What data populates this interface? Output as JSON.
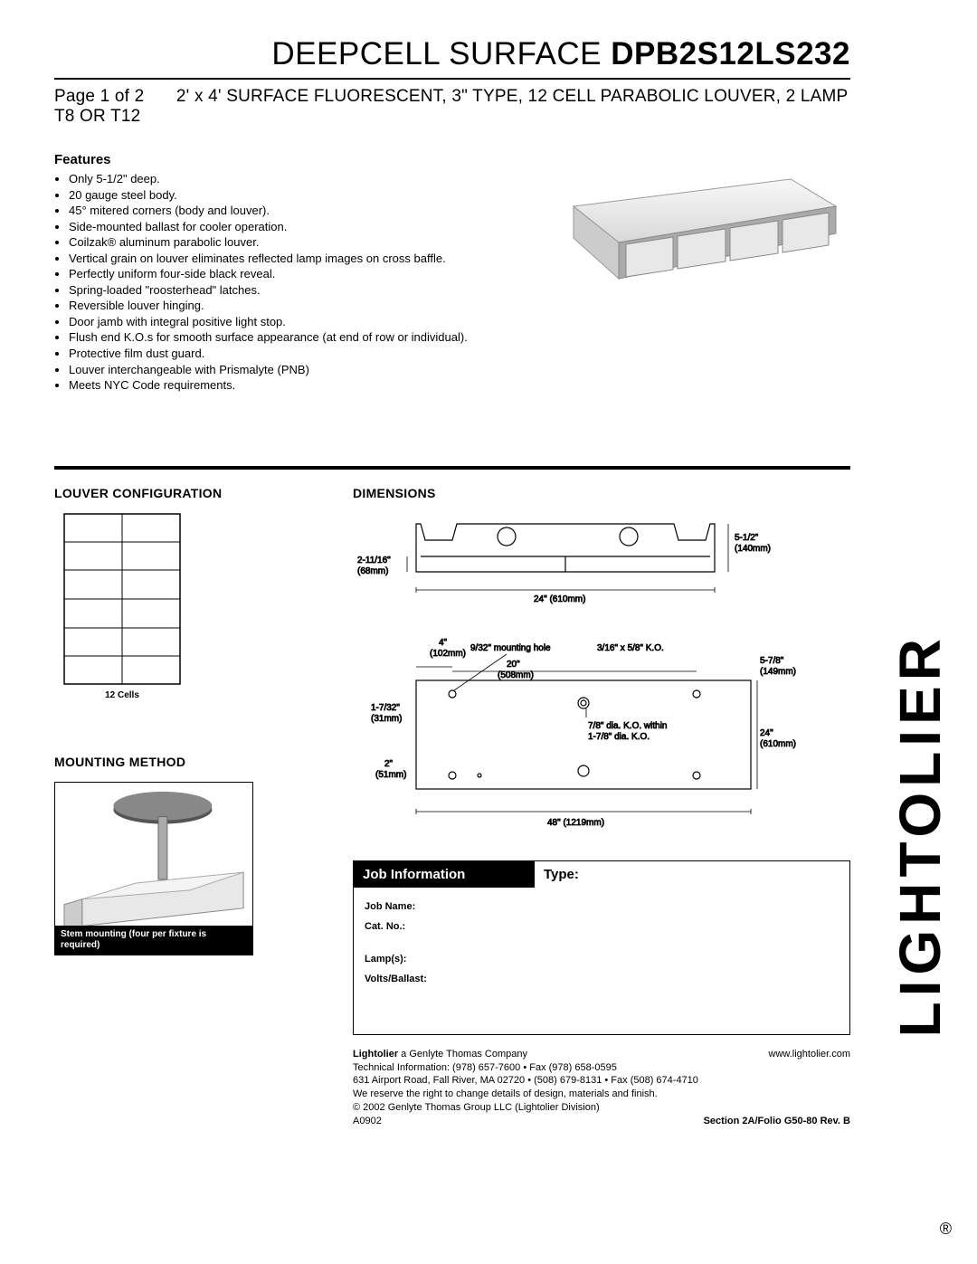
{
  "header": {
    "product_line": "DEEPCELL SURFACE",
    "model": "DPB2S12LS232",
    "page_label": "Page 1 of 2",
    "description": "2' x 4' SURFACE FLUORESCENT, 3\" TYPE, 12 CELL PARABOLIC LOUVER, 2 LAMP T8 OR T12"
  },
  "features": {
    "heading": "Features",
    "items": [
      "Only 5-1/2\" deep.",
      "20 gauge steel body.",
      "45° mitered corners (body and louver).",
      "Side-mounted ballast for cooler operation.",
      "Coilzak® aluminum parabolic louver.",
      "Vertical grain on louver eliminates reflected lamp images on cross baffle.",
      "Perfectly uniform four-side black reveal.",
      "Spring-loaded \"roosterhead\" latches.",
      "Reversible louver hinging.",
      "Door jamb with integral positive light stop.",
      "Flush end K.O.s for smooth surface appearance (at end of row or individual).",
      "Protective film dust guard.",
      "Louver interchangeable with Prismalyte (PNB)",
      "Meets NYC Code requirements."
    ]
  },
  "louver": {
    "heading": "LOUVER CONFIGURATION",
    "rows": 6,
    "cols": 2,
    "caption": "12 Cells"
  },
  "mounting": {
    "heading": "MOUNTING METHOD",
    "caption": "Stem mounting (four per fixture is required)"
  },
  "dimensions": {
    "heading": "DIMENSIONS",
    "side": {
      "height_left": "2-11/16\"",
      "height_left_mm": "(68mm)",
      "height_right": "5-1/2\"",
      "height_right_mm": "(140mm)",
      "width": "24\" (610mm)"
    },
    "top": {
      "a": "4\"",
      "a_mm": "(102mm)",
      "mh": "9/32\" mounting hole",
      "ko1": "3/16\" x 5/8\" K.O.",
      "b": "20\"",
      "b_mm": "(508mm)",
      "c": "5-7/8\"",
      "c_mm": "(149mm)",
      "d": "1-7/32\"",
      "d_mm": "(31mm)",
      "ko2": "7/8\" dia. K.O. within",
      "ko3": "1-7/8\" dia. K.O.",
      "e": "24\"",
      "e_mm": "(610mm)",
      "f": "2\"",
      "f_mm": "(51mm)",
      "g": "48\" (1219mm)"
    }
  },
  "job": {
    "header1": "Job Information",
    "header2": "Type:",
    "fields": [
      "Job Name:",
      "Cat. No.:",
      "Lamp(s):",
      "Volts/Ballast:"
    ]
  },
  "footer": {
    "company": "Lightolier",
    "company_desc": " a Genlyte Thomas Company",
    "website": "www.lightolier.com",
    "tech": "Technical Information: (978) 657-7600 • Fax (978) 658-0595",
    "address": "631 Airport Road, Fall River, MA 02720 • (508) 679-8131 • Fax (508) 674-4710",
    "reserve": "We reserve the right to change details of design, materials and finish.",
    "copyright": "© 2002 Genlyte Thomas Group LLC (Lightolier Division)",
    "code": "A0902",
    "section": "Section 2A/Folio G50-80 Rev. B"
  },
  "brand": "LIGHTOLIER"
}
